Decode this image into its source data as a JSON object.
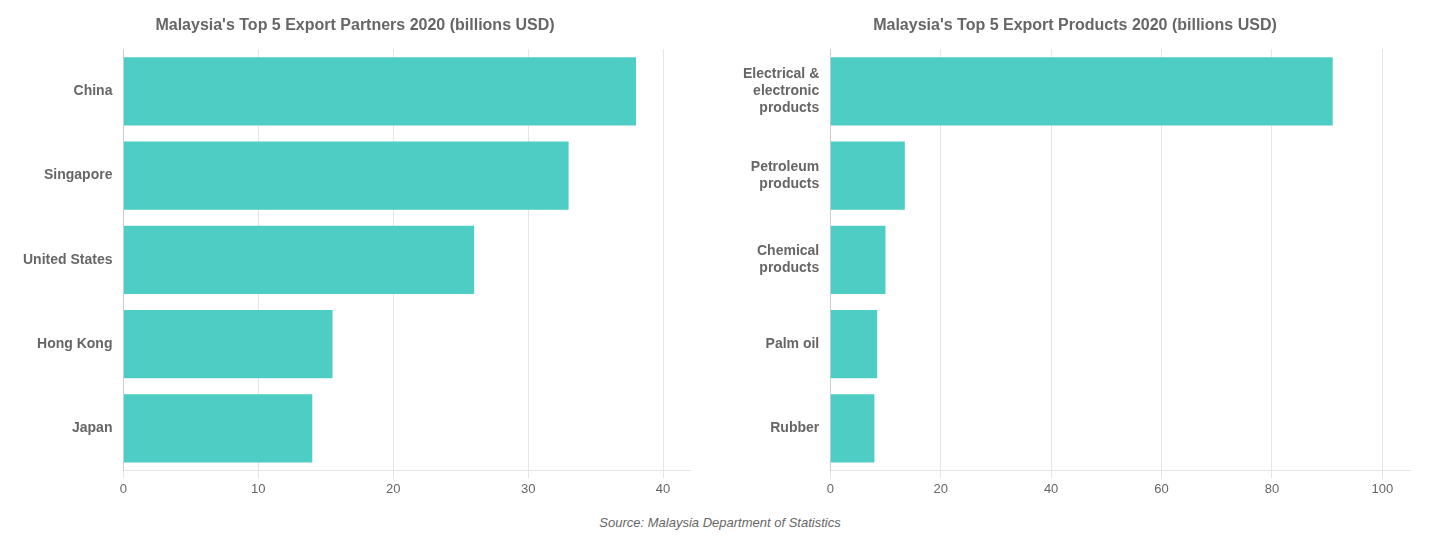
{
  "chart_data": [
    {
      "type": "bar",
      "orientation": "horizontal",
      "title": "Malaysia's Top 5 Export Partners 2020 (billions USD)",
      "categories": [
        "Japan",
        "Hong Kong",
        "United States",
        "Singapore",
        "China"
      ],
      "values": [
        14,
        15.5,
        26,
        33,
        38
      ],
      "color": "#4ecdc4",
      "xlim": [
        0,
        42
      ],
      "xticks": [
        0,
        10,
        20,
        30,
        40
      ],
      "grid": true,
      "annotations": [
        "Source: Malaysia Department of Statistics"
      ]
    },
    {
      "type": "bar",
      "orientation": "horizontal",
      "title": "Malaysia's Top 5 Export Products 2020 (billions USD)",
      "categories": [
        "Rubber",
        "Palm oil",
        "Chemical\nproducts",
        "Petroleum\nproducts",
        "Electrical &\nelectronic\nproducts"
      ],
      "values": [
        8,
        8.5,
        10,
        13.5,
        91
      ],
      "color": "#4ecdc4",
      "xlim": [
        0,
        105
      ],
      "xticks": [
        0,
        20,
        40,
        60,
        80,
        100
      ],
      "grid": true
    }
  ]
}
